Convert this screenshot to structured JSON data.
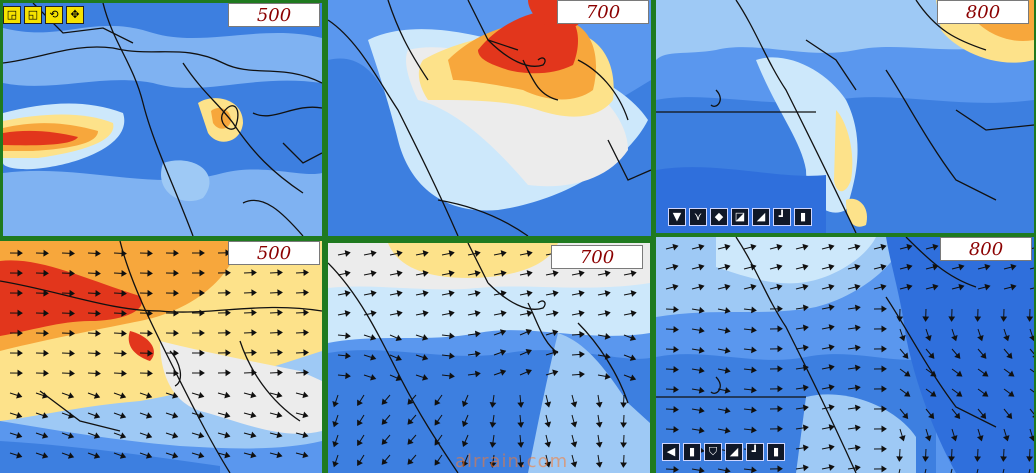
{
  "panels": [
    {
      "label": "500"
    },
    {
      "label": "700"
    },
    {
      "label": "800"
    },
    {
      "label": "500"
    },
    {
      "label": "700"
    },
    {
      "label": "800"
    }
  ],
  "toolbars": {
    "top_left": [
      {
        "icon": "zoom-in-icon",
        "glyph": "◲"
      },
      {
        "icon": "zoom-out-icon",
        "glyph": "◱"
      },
      {
        "icon": "reset-icon",
        "glyph": "⟲"
      },
      {
        "icon": "pan-icon",
        "glyph": "✥"
      }
    ],
    "top_right": [
      {
        "icon": "down-icon",
        "glyph": "▼"
      },
      {
        "icon": "chevron-icon",
        "glyph": "⋎"
      },
      {
        "icon": "diamond-icon",
        "glyph": "◆"
      },
      {
        "icon": "layer-icon",
        "glyph": "◪"
      },
      {
        "icon": "measure-icon",
        "glyph": "◢"
      },
      {
        "icon": "pin-icon",
        "glyph": "┛"
      },
      {
        "icon": "bar-icon",
        "glyph": "▮"
      }
    ],
    "bottom_right": [
      {
        "icon": "back-icon",
        "glyph": "◀"
      },
      {
        "icon": "info-icon",
        "glyph": "▮"
      },
      {
        "icon": "shield-icon",
        "glyph": "⛉"
      },
      {
        "icon": "measure-icon",
        "glyph": "◢"
      },
      {
        "icon": "pin-icon",
        "glyph": "┛"
      },
      {
        "icon": "bar-icon",
        "glyph": "▮"
      }
    ]
  },
  "watermark": "alrrain.com",
  "colors": {
    "frame": "#1f7a1f",
    "blue_dark": "#2f6fdc",
    "blue": "#5a97ee",
    "blue_light": "#9ec9f5",
    "cyan_light": "#cde8fb",
    "white": "#ececec",
    "yellow": "#fde28a",
    "orange": "#f7a73c",
    "red": "#e2361c"
  }
}
